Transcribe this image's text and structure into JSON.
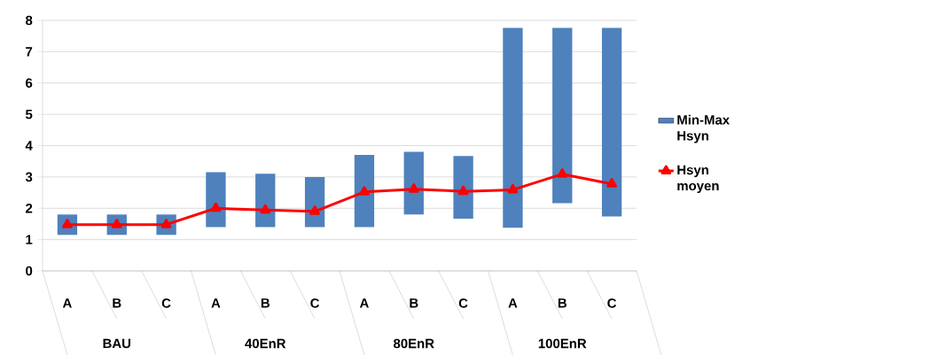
{
  "chart_data": {
    "type": "bar",
    "categories": [
      "A",
      "B",
      "C",
      "A",
      "B",
      "C",
      "A",
      "B",
      "C",
      "A",
      "B",
      "C"
    ],
    "series": [
      {
        "name": "Min-Max Hsyn",
        "color": "#4f81bd",
        "base": [
          1.15,
          1.15,
          1.15,
          1.4,
          1.4,
          1.4,
          1.4,
          1.8,
          1.67,
          1.38,
          2.16,
          1.74
        ],
        "values": [
          0.65,
          0.65,
          0.65,
          1.75,
          1.7,
          1.6,
          2.3,
          2.0,
          2.0,
          6.38,
          5.6,
          6.02
        ]
      },
      {
        "name": "Hsyn moyen",
        "type": "line",
        "color": "#ff0000",
        "marker": "triangle",
        "values": [
          1.48,
          1.48,
          1.48,
          2.0,
          1.94,
          1.9,
          2.52,
          2.61,
          2.54,
          2.59,
          3.09,
          2.78
        ]
      }
    ],
    "annotations": [
      "BAU",
      "40EnR",
      "80EnR",
      "100EnR"
    ],
    "ylim": [
      0,
      8
    ],
    "yticks": [
      0,
      1,
      2,
      3,
      4,
      5,
      6,
      7,
      8
    ],
    "grid": "y",
    "legend": "right"
  }
}
